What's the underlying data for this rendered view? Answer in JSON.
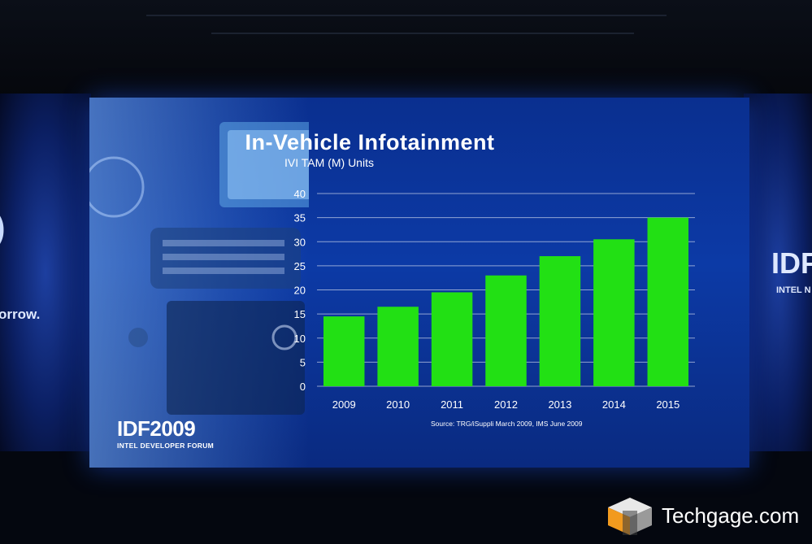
{
  "slide": {
    "logo_main": "IDF2009",
    "logo_sub": "INTEL DEVELOPER FORUM"
  },
  "stage": {
    "left_banner_text": "orrow.",
    "right_banner_logo": "IDF",
    "right_banner_sub": "INTEL N"
  },
  "watermark": {
    "text": "Techgage.com"
  },
  "colors": {
    "bar_fill": "#22e014",
    "screen_bg": "#0c3aa6",
    "text": "#ffffff"
  },
  "chart_data": {
    "type": "bar",
    "title": "In-Vehicle Infotainment",
    "subtitle": "IVI TAM (M) Units",
    "categories": [
      "2009",
      "2010",
      "2011",
      "2012",
      "2013",
      "2014",
      "2015"
    ],
    "series": [
      {
        "values": [
          14.5,
          16.5,
          19.5,
          23,
          27,
          30.5,
          35
        ]
      }
    ],
    "yticks": [
      "0",
      "5",
      "10",
      "15",
      "20",
      "25",
      "30",
      "35",
      "40"
    ],
    "ylim": [
      0,
      40
    ],
    "grid": true,
    "legend": "none",
    "source": "Source:  TRG/iSuppli March 2009, IMS June 2009"
  }
}
